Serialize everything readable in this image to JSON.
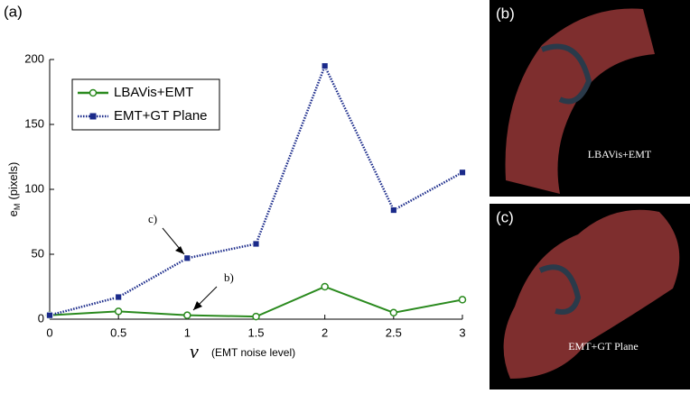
{
  "chart_data": {
    "type": "line",
    "panel_label": "(a)",
    "x": [
      0,
      0.5,
      1,
      1.5,
      2,
      2.5,
      3
    ],
    "series": [
      {
        "name": "LBAVis+EMT",
        "color": "#2a8a1e",
        "marker": "circle",
        "dash": "solid",
        "values": [
          3,
          6,
          3,
          2,
          25,
          5,
          15
        ]
      },
      {
        "name": "EMT+GT Plane",
        "color": "#1a2a8a",
        "marker": "square",
        "dash": "dotted",
        "values": [
          3,
          17,
          47,
          58,
          195,
          84,
          113
        ]
      }
    ],
    "xlim": [
      0,
      3
    ],
    "xticks": [
      0,
      0.5,
      1,
      1.5,
      2,
      2.5,
      3
    ],
    "ylim": [
      0,
      200
    ],
    "yticks": [
      0,
      50,
      100,
      150,
      200
    ],
    "xlabel_symbol": "ν",
    "xlabel": "(EMT noise level)",
    "ylabel_main": "e",
    "ylabel_sub": "M",
    "ylabel_rest": "(pixels)",
    "annotations": [
      "c)",
      "b)"
    ],
    "legend": "upper left"
  },
  "panels": [
    {
      "label": "(b)",
      "caption": "LBAVis+EMT"
    },
    {
      "label": "(c)",
      "caption": "EMT+GT Plane"
    }
  ]
}
